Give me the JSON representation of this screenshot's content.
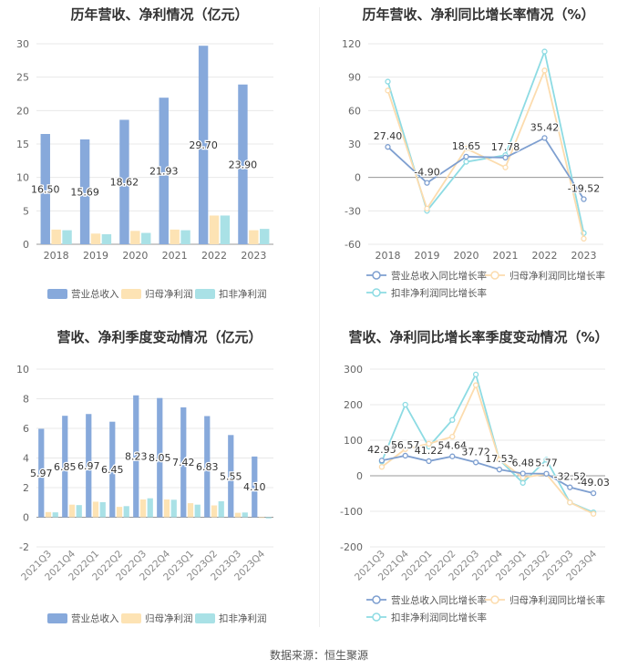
{
  "source": "数据来源：恒生聚源",
  "chart_data": [
    {
      "type": "bar",
      "title": "历年营收、净利情况（亿元）",
      "categories": [
        "2018",
        "2019",
        "2020",
        "2021",
        "2022",
        "2023"
      ],
      "series": [
        {
          "name": "营业总收入",
          "color": "#87a9db",
          "values": [
            16.5,
            15.69,
            18.62,
            21.93,
            29.7,
            23.9
          ],
          "labels": [
            "16.50",
            "15.69",
            "18.62",
            "21.93",
            "29.70",
            "23.90"
          ]
        },
        {
          "name": "归母净利润",
          "color": "#fde3b4",
          "values": [
            2.2,
            1.6,
            2.0,
            2.2,
            4.3,
            2.1
          ]
        },
        {
          "name": "扣非净利润",
          "color": "#a9e1e6",
          "values": [
            2.1,
            1.5,
            1.7,
            2.1,
            4.3,
            2.3
          ]
        }
      ],
      "ylim": [
        0,
        30
      ],
      "yticks": [
        "0",
        "5",
        "10",
        "15",
        "20",
        "25",
        "30"
      ],
      "grid": true,
      "legend": "bottom"
    },
    {
      "type": "line",
      "title": "历年营收、净利同比增长率情况（%）",
      "categories": [
        "2018",
        "2019",
        "2020",
        "2021",
        "2022",
        "2023"
      ],
      "series": [
        {
          "name": "营业总收入同比增长率",
          "color": "#7e9fd0",
          "values": [
            27.4,
            -4.9,
            18.65,
            17.78,
            35.42,
            -19.52
          ],
          "labels": [
            "27.40",
            "-4.90",
            "18.65",
            "17.78",
            "35.42",
            "-19.52"
          ]
        },
        {
          "name": "归母净利润同比增长率",
          "color": "#fcdcae",
          "values": [
            78,
            -28,
            26,
            9,
            96,
            -55
          ]
        },
        {
          "name": "扣非净利润同比增长率",
          "color": "#8ddbe3",
          "values": [
            86,
            -30,
            14,
            20,
            113,
            -50
          ]
        }
      ],
      "ylim": [
        -60,
        120
      ],
      "yticks": [
        "-60",
        "-30",
        "0",
        "30",
        "60",
        "90",
        "120"
      ],
      "grid": true,
      "legend": "bottom"
    },
    {
      "type": "bar",
      "title": "营收、净利季度变动情况（亿元）",
      "categories": [
        "2021Q3",
        "2021Q4",
        "2022Q1",
        "2022Q2",
        "2022Q3",
        "2022Q4",
        "2023Q1",
        "2023Q2",
        "2023Q3",
        "2023Q4"
      ],
      "series": [
        {
          "name": "营业总收入",
          "color": "#87a9db",
          "values": [
            5.97,
            6.85,
            6.97,
            6.45,
            8.23,
            8.05,
            7.42,
            6.83,
            5.55,
            4.1
          ],
          "labels": [
            "5.97",
            "6.85",
            "6.97",
            "6.45",
            "8.23",
            "8.05",
            "7.42",
            "6.83",
            "5.55",
            "4.10"
          ]
        },
        {
          "name": "归母净利润",
          "color": "#fde3b4",
          "values": [
            0.35,
            0.85,
            1.05,
            0.7,
            1.2,
            1.2,
            0.95,
            0.8,
            0.3,
            -0.05
          ]
        },
        {
          "name": "扣非净利润",
          "color": "#a9e1e6",
          "values": [
            0.33,
            0.82,
            1.02,
            0.75,
            1.28,
            1.18,
            0.85,
            1.08,
            0.32,
            -0.08
          ]
        }
      ],
      "ylim": [
        -2,
        10
      ],
      "yticks": [
        "-2",
        "0",
        "2",
        "4",
        "6",
        "8",
        "10"
      ],
      "grid": true,
      "legend": "bottom"
    },
    {
      "type": "line",
      "title": "营收、净利同比增长率季度变动情况（%）",
      "categories": [
        "2021Q3",
        "2021Q4",
        "2022Q1",
        "2022Q2",
        "2022Q3",
        "2022Q4",
        "2023Q1",
        "2023Q2",
        "2023Q3",
        "2023Q4"
      ],
      "series": [
        {
          "name": "营业总收入同比增长率",
          "color": "#7e9fd0",
          "values": [
            42.95,
            56.57,
            41.22,
            54.64,
            37.72,
            17.53,
            6.48,
            5.77,
            -32.52,
            -49.03
          ],
          "labels": [
            "42.95",
            "56.57",
            "41.22",
            "54.64",
            "37.72",
            "17.53",
            "6.48",
            "5.77",
            "-32.52",
            "-49.03"
          ]
        },
        {
          "name": "归母净利润同比增长率",
          "color": "#fcdcae",
          "values": [
            25,
            75,
            90,
            110,
            255,
            45,
            -5,
            5,
            -75,
            -107
          ]
        },
        {
          "name": "扣非净利润同比增长率",
          "color": "#8ddbe3",
          "values": [
            40,
            200,
            82,
            157,
            285,
            45,
            -20,
            45,
            -75,
            -103
          ]
        }
      ],
      "ylim": [
        -200,
        300
      ],
      "yticks": [
        "-200",
        "-100",
        "0",
        "100",
        "200",
        "300"
      ],
      "grid": true,
      "legend": "bottom"
    }
  ]
}
